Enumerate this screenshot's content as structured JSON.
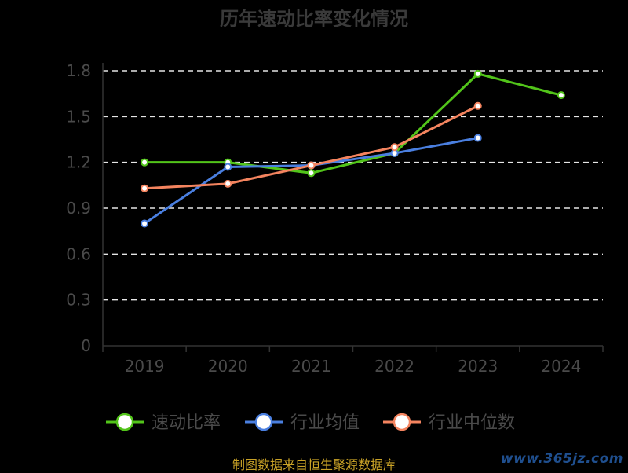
{
  "chart_data": {
    "type": "line",
    "title": "历年速动比率变化情况",
    "categories": [
      "2019",
      "2020",
      "2021",
      "2022",
      "2023",
      "2024"
    ],
    "ylim": [
      0,
      1.8
    ],
    "yticks": [
      "0",
      "0.3",
      "0.6",
      "0.9",
      "1.2",
      "1.5",
      "1.8"
    ],
    "grid": true,
    "legend_position": "bottom",
    "series": [
      {
        "name": "速动比率",
        "color": "#52c41a",
        "values": [
          1.2,
          1.2,
          1.13,
          1.26,
          1.78,
          1.64
        ]
      },
      {
        "name": "行业均值",
        "color": "#4a7fe0",
        "values": [
          0.8,
          1.17,
          1.18,
          1.26,
          1.36,
          null
        ]
      },
      {
        "name": "行业中位数",
        "color": "#f4845f",
        "values": [
          1.03,
          1.06,
          1.18,
          1.3,
          1.57,
          null
        ]
      }
    ]
  },
  "footer": {
    "source": "制图数据来自恒生聚源数据库",
    "watermark": "www.365jz.com"
  }
}
